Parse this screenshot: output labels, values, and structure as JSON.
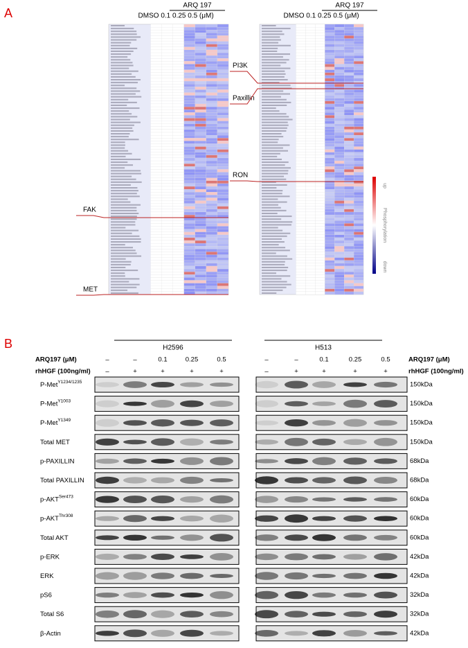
{
  "panelA": {
    "label": "A",
    "left": {
      "group": "ARQ 197",
      "columns": "DMSO 0.1 0.25 0.5 (μM)",
      "callouts": [
        "FAK",
        "MET"
      ]
    },
    "right": {
      "group": "ARQ 197",
      "columns": "DMSO 0.1 0.25 0.5 (μM)",
      "callouts": [
        "PI3K",
        "Paxillin",
        "RON"
      ]
    },
    "legend": {
      "top": "up",
      "title": "Phosphorylation",
      "bottom": "down"
    }
  },
  "panelB": {
    "label": "B",
    "cell_lines": [
      "H2596",
      "H513"
    ],
    "treatments": [
      {
        "name": "ARQ197 (μM)",
        "lanes": [
          "–",
          "–",
          "0.1",
          "0.25",
          "0.5"
        ]
      },
      {
        "name": "rhHGF (100ng/ml)",
        "lanes": [
          "–",
          "+",
          "+",
          "+",
          "+"
        ]
      }
    ],
    "blots": [
      {
        "name": "P-Met",
        "sup": "Y1234/1235",
        "kda": "150kDa"
      },
      {
        "name": "P-Met",
        "sup": "Y1003",
        "kda": "150kDa"
      },
      {
        "name": "P-Met",
        "sup": "Y1349",
        "kda": "150kDa"
      },
      {
        "name": "Total MET",
        "kda": "150kDa"
      },
      {
        "name": "p-PAXILLIN",
        "kda": "68kDa"
      },
      {
        "name": "Total PAXILLIN",
        "kda": "68kDa"
      },
      {
        "name": "p-AKT",
        "sup": "Ser473",
        "kda": "60kDa"
      },
      {
        "name": "p-AKT",
        "sup": "Thr308",
        "kda": "60kDa"
      },
      {
        "name": "Total AKT",
        "kda": "60kDa"
      },
      {
        "name": "p-ERK",
        "kda": "42kDa"
      },
      {
        "name": "ERK",
        "kda": "42kDa"
      },
      {
        "name": "pS6",
        "kda": "32kDa"
      },
      {
        "name": "Total S6",
        "kda": "32kDa"
      },
      {
        "name": "β-Actin",
        "kda": "42kDa"
      }
    ]
  }
}
